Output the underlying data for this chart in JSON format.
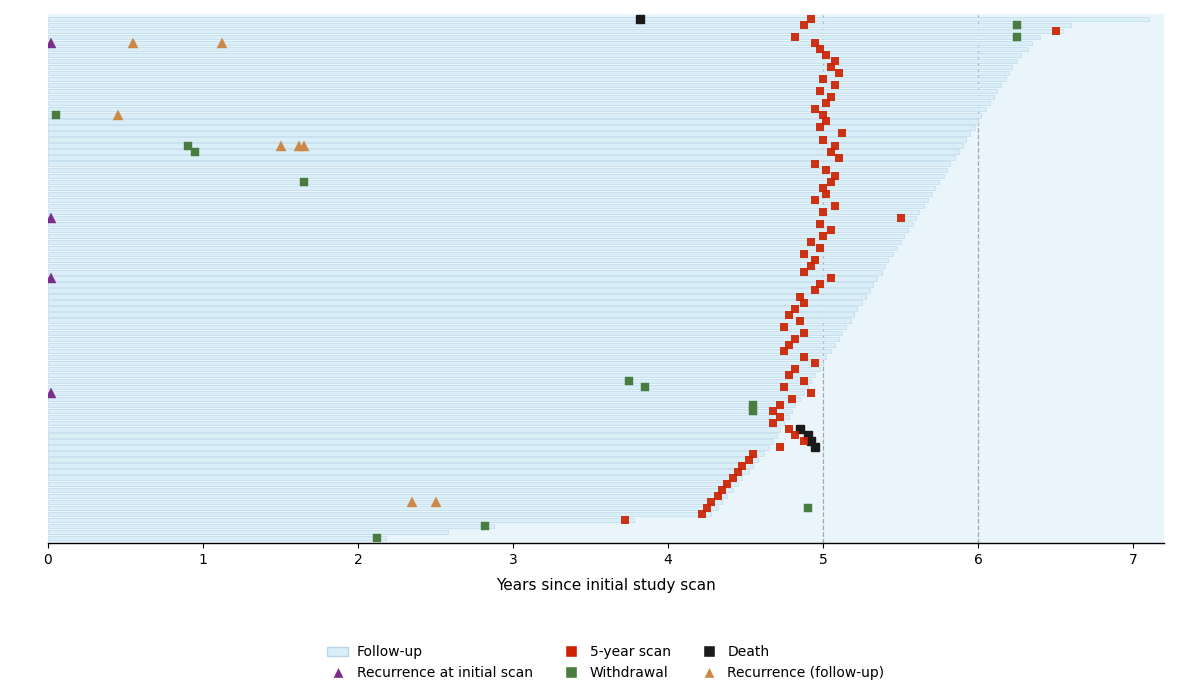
{
  "xlabel": "Years since initial study scan",
  "xlim": [
    0,
    7.2
  ],
  "xticks": [
    0,
    1,
    2,
    3,
    4,
    5,
    6,
    7
  ],
  "dashed_vlines": [
    5.0,
    6.0
  ],
  "colors": {
    "recurrence_initial": "#7b2d8b",
    "withdrawal": "#4a7c3f",
    "death": "#1a1a1a",
    "five_year_scan": "#cc2200",
    "recurrence_followup": "#cc8844",
    "bar_fill": "#daeef7",
    "bar_edge": "#b8d8e8"
  },
  "legend": {
    "followup_label": "Follow-up",
    "recurrence_initial_label": "Recurrence at initial scan",
    "five_year_label": "5-year scan",
    "withdrawal_label": "Withdrawal",
    "death_label": "Death",
    "recurrence_followup_label": "Recurrence (follow-up)"
  }
}
